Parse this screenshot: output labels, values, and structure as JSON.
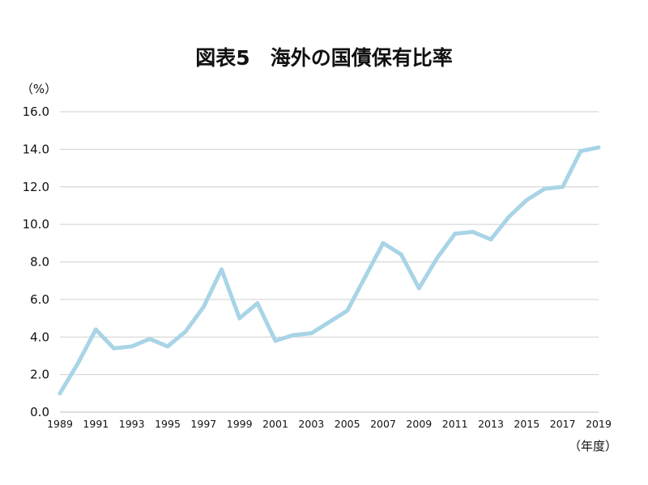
{
  "chart_data": {
    "type": "line",
    "title": "図表5　海外の国債保有比率",
    "ylabel": "（%）",
    "xlabel": "（年度）",
    "ylim": [
      0,
      16
    ],
    "yticks": [
      "0.0",
      "2.0",
      "4.0",
      "6.0",
      "8.0",
      "10.0",
      "12.0",
      "14.0",
      "16.0"
    ],
    "xticks": [
      "1989",
      "1991",
      "1993",
      "1995",
      "1997",
      "1999",
      "2001",
      "2003",
      "2005",
      "2007",
      "2009",
      "2011",
      "2013",
      "2015",
      "2017",
      "2019"
    ],
    "grid": true,
    "line_color": "#a8d4e6",
    "x": [
      1989,
      1990,
      1991,
      1992,
      1993,
      1994,
      1995,
      1996,
      1997,
      1998,
      1999,
      2000,
      2001,
      2002,
      2003,
      2004,
      2005,
      2006,
      2007,
      2008,
      2009,
      2010,
      2011,
      2012,
      2013,
      2014,
      2015,
      2016,
      2017,
      2018,
      2019
    ],
    "series": [
      {
        "values": [
          1.0,
          2.6,
          4.4,
          3.4,
          3.5,
          3.9,
          3.5,
          4.3,
          5.6,
          7.6,
          5.0,
          5.8,
          3.8,
          4.1,
          4.2,
          4.8,
          5.4,
          7.2,
          9.0,
          8.4,
          6.6,
          8.2,
          9.5,
          9.6,
          9.2,
          10.4,
          11.3,
          11.9,
          12.0,
          13.9,
          14.1
        ]
      }
    ]
  }
}
